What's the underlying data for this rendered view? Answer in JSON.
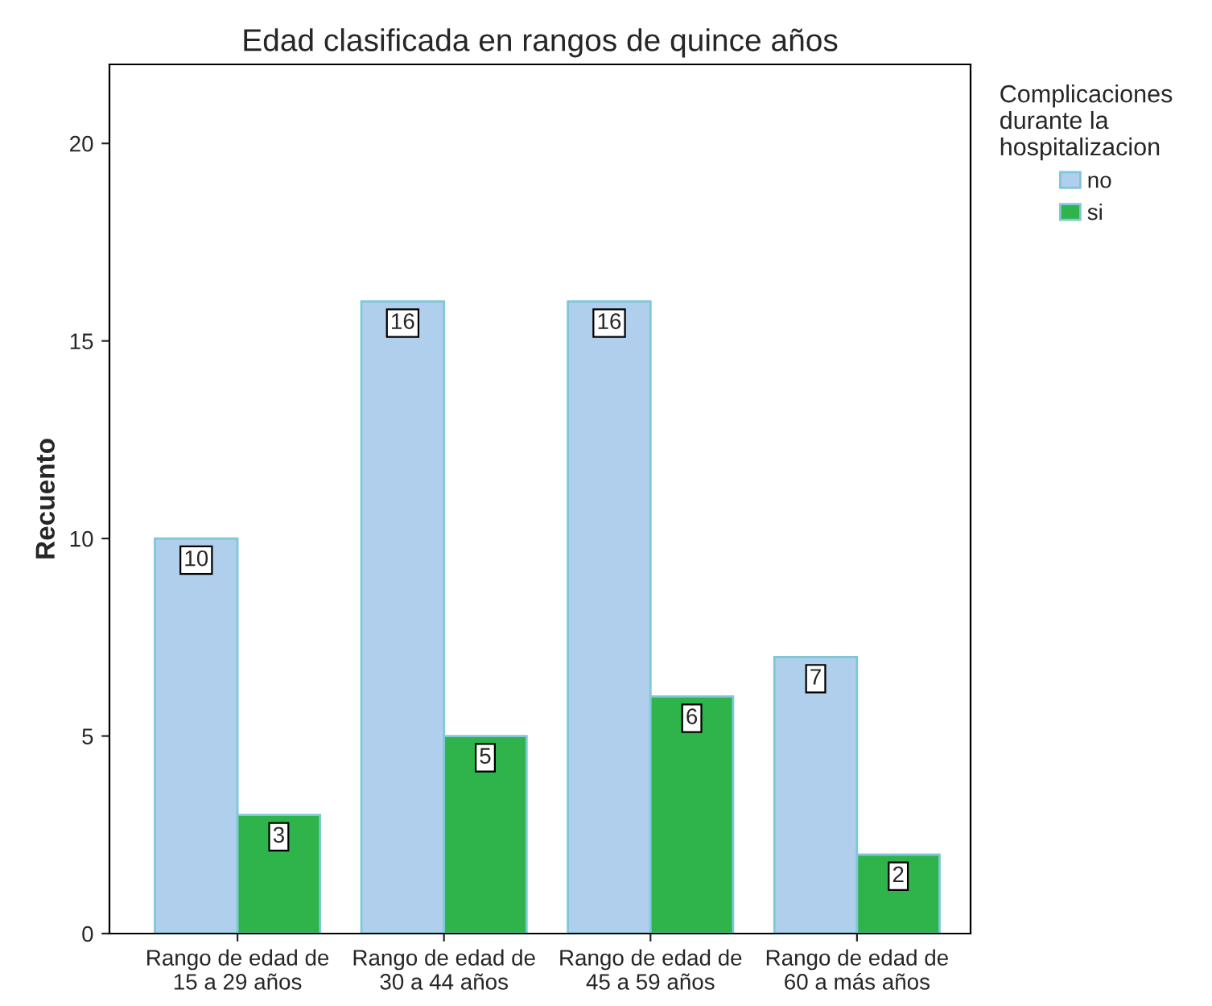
{
  "chart_data": {
    "type": "bar",
    "title": "Edad clasificada en rangos de quince años",
    "ylabel": "Recuento",
    "legend_title": "Complicaciones\ndurante la\nhospitalizacion",
    "categories": [
      "Rango de edad de\n15 a 29 años",
      "Rango de edad de\n30 a 44 años",
      "Rango de edad de\n45 a 59 años",
      "Rango de edad de\n60 a más años"
    ],
    "series": [
      {
        "name": "no",
        "color": "#b0cfec",
        "values": [
          10,
          16,
          16,
          7
        ]
      },
      {
        "name": "si",
        "color": "#2eb44a",
        "values": [
          3,
          5,
          6,
          2
        ]
      }
    ],
    "ylim": [
      0,
      22
    ],
    "yticks": [
      0,
      5,
      10,
      15,
      20
    ],
    "grid": false,
    "legend": "top right",
    "data_labels": true
  }
}
